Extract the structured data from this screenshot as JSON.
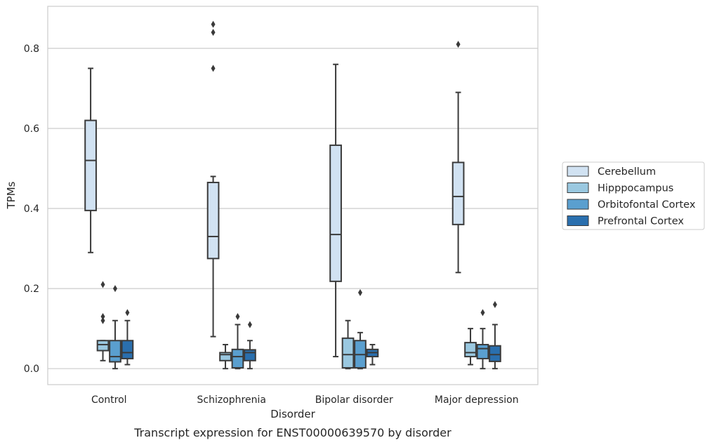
{
  "chart_data": {
    "type": "box",
    "title": "",
    "caption": "Transcript expression for ENST00000639570 by disorder",
    "xlabel": "Disorder",
    "ylabel": "TPMs",
    "ylim": [
      -0.04,
      0.905
    ],
    "yticks": [
      0.0,
      0.2,
      0.4,
      0.6,
      0.8
    ],
    "ytick_labels": [
      "0.0",
      "0.2",
      "0.4",
      "0.6",
      "0.8"
    ],
    "grid": "horizontal",
    "legend_position": "right",
    "categories": [
      "Control",
      "Schizophrenia",
      "Bipolar disorder",
      "Major depression"
    ],
    "series": [
      {
        "name": "Cerebellum",
        "color": "#d1e2f2",
        "boxes": [
          {
            "whisker_low": 0.29,
            "q1": 0.395,
            "median": 0.52,
            "q3": 0.62,
            "whisker_high": 0.75,
            "outliers": []
          },
          {
            "whisker_low": 0.08,
            "q1": 0.275,
            "median": 0.33,
            "q3": 0.465,
            "whisker_high": 0.48,
            "outliers": [
              0.75,
              0.84,
              0.86
            ]
          },
          {
            "whisker_low": 0.03,
            "q1": 0.218,
            "median": 0.335,
            "q3": 0.558,
            "whisker_high": 0.76,
            "outliers": []
          },
          {
            "whisker_low": 0.24,
            "q1": 0.36,
            "median": 0.43,
            "q3": 0.515,
            "whisker_high": 0.69,
            "outliers": [
              0.81
            ]
          }
        ]
      },
      {
        "name": "Hipppocampus",
        "color": "#9ac8e0",
        "boxes": [
          {
            "whisker_low": 0.02,
            "q1": 0.045,
            "median": 0.06,
            "q3": 0.07,
            "whisker_high": 0.07,
            "outliers": [
              0.12,
              0.13,
              0.21
            ]
          },
          {
            "whisker_low": 0.0,
            "q1": 0.02,
            "median": 0.035,
            "q3": 0.04,
            "whisker_high": 0.06,
            "outliers": []
          },
          {
            "whisker_low": 0.0,
            "q1": 0.002,
            "median": 0.035,
            "q3": 0.076,
            "whisker_high": 0.12,
            "outliers": []
          },
          {
            "whisker_low": 0.01,
            "q1": 0.03,
            "median": 0.04,
            "q3": 0.065,
            "whisker_high": 0.1,
            "outliers": []
          }
        ]
      },
      {
        "name": "Orbitofontal Cortex",
        "color": "#5a9fcf",
        "boxes": [
          {
            "whisker_low": 0.0,
            "q1": 0.017,
            "median": 0.03,
            "q3": 0.07,
            "whisker_high": 0.12,
            "outliers": [
              0.2
            ]
          },
          {
            "whisker_low": 0.0,
            "q1": 0.002,
            "median": 0.03,
            "q3": 0.048,
            "whisker_high": 0.11,
            "outliers": [
              0.13
            ]
          },
          {
            "whisker_low": 0.0,
            "q1": 0.002,
            "median": 0.035,
            "q3": 0.07,
            "whisker_high": 0.09,
            "outliers": [
              0.19
            ]
          },
          {
            "whisker_low": 0.0,
            "q1": 0.025,
            "median": 0.05,
            "q3": 0.06,
            "whisker_high": 0.1,
            "outliers": [
              0.14
            ]
          }
        ]
      },
      {
        "name": "Prefrontal Cortex",
        "color": "#2a6fae",
        "boxes": [
          {
            "whisker_low": 0.01,
            "q1": 0.025,
            "median": 0.04,
            "q3": 0.07,
            "whisker_high": 0.12,
            "outliers": [
              0.14
            ]
          },
          {
            "whisker_low": 0.0,
            "q1": 0.02,
            "median": 0.04,
            "q3": 0.047,
            "whisker_high": 0.07,
            "outliers": [
              0.11
            ]
          },
          {
            "whisker_low": 0.01,
            "q1": 0.03,
            "median": 0.04,
            "q3": 0.048,
            "whisker_high": 0.06,
            "outliers": []
          },
          {
            "whisker_low": 0.0,
            "q1": 0.018,
            "median": 0.035,
            "q3": 0.057,
            "whisker_high": 0.11,
            "outliers": [
              0.16
            ]
          }
        ]
      }
    ]
  }
}
